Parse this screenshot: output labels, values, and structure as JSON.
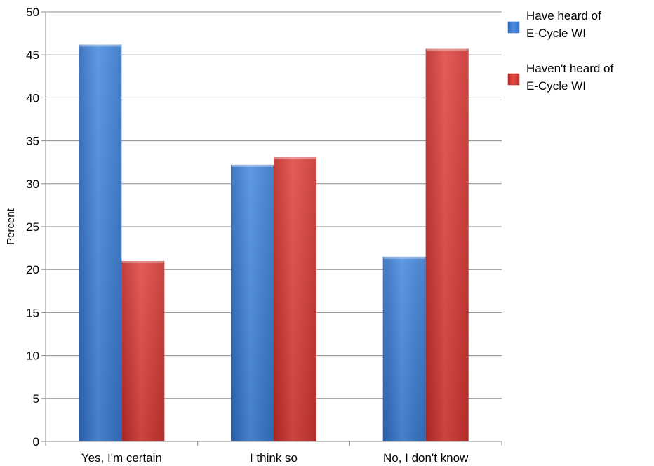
{
  "chart_data": {
    "type": "bar",
    "title": "",
    "xlabel": "",
    "ylabel": "Percent",
    "ylim": [
      0,
      50
    ],
    "ytick_step": 5,
    "yticks": [
      "0",
      "5",
      "10",
      "15",
      "20",
      "25",
      "30",
      "35",
      "40",
      "45",
      "50"
    ],
    "grid": true,
    "legend_position": "right",
    "categories": [
      "Yes, I'm certain",
      "I think so",
      "No, I don't know"
    ],
    "series": [
      {
        "name": "Have heard of E-Cycle WI",
        "name_lines": [
          "Have heard of",
          "E-Cycle WI"
        ],
        "color": "#3f7fd4",
        "values": [
          46.2,
          32.2,
          21.5
        ]
      },
      {
        "name": "Haven't heard of E-Cycle WI",
        "name_lines": [
          "Haven't heard of",
          "E-Cycle WI"
        ],
        "color": "#d63b37",
        "values": [
          21.0,
          33.1,
          45.7
        ]
      }
    ]
  }
}
